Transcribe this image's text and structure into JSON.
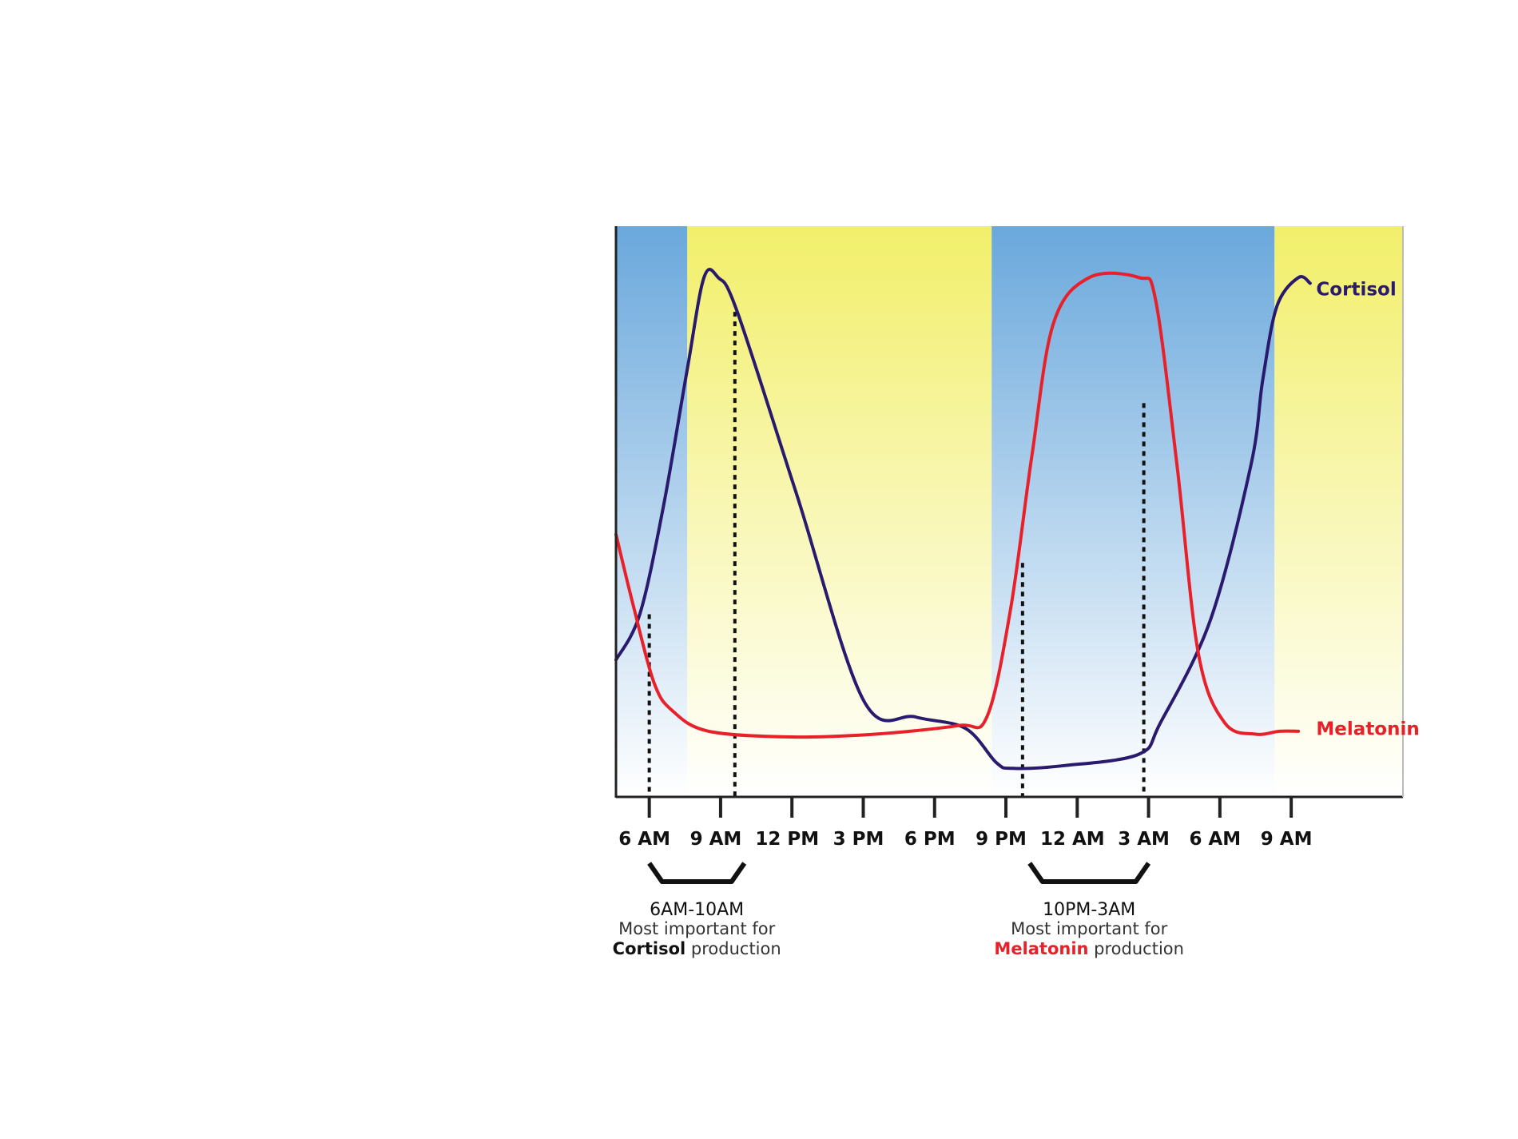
{
  "chart_data": {
    "type": "line",
    "title": "",
    "xlabel": "",
    "ylabel": "",
    "x_ticks": [
      "6 AM",
      "9 AM",
      "12 PM",
      "3 PM",
      "6 PM",
      "9 PM",
      "12 AM",
      "3 AM",
      "6 AM",
      "9 AM"
    ],
    "x_range_hours": [
      4.6,
      37.7
    ],
    "y_range": [
      0,
      100
    ],
    "grid": false,
    "colors": {
      "cortisol": "#2a1a6e",
      "melatonin": "#e8202a",
      "night": "#6aa8dc",
      "day": "#f2ef6a"
    },
    "background_bands": [
      {
        "type": "night",
        "from": 4.6,
        "to": 7.6
      },
      {
        "type": "day",
        "from": 7.6,
        "to": 20.4
      },
      {
        "type": "night",
        "from": 20.4,
        "to": 32.3
      },
      {
        "type": "day",
        "from": 32.3,
        "to": 37.7
      }
    ],
    "series": [
      {
        "name": "Cortisol",
        "color": "#2a1a6e",
        "points": [
          [
            4.6,
            24
          ],
          [
            5.6,
            32
          ],
          [
            6.6,
            51
          ],
          [
            7.6,
            75
          ],
          [
            8.3,
            91
          ],
          [
            8.9,
            91
          ],
          [
            9.7,
            85
          ],
          [
            12.2,
            53
          ],
          [
            15.0,
            17
          ],
          [
            17.2,
            14
          ],
          [
            19.3,
            12
          ],
          [
            20.6,
            6
          ],
          [
            21.3,
            5
          ],
          [
            23.5,
            5.5
          ],
          [
            26.6,
            7.5
          ],
          [
            27.5,
            13
          ],
          [
            29.6,
            31
          ],
          [
            31.3,
            58
          ],
          [
            31.8,
            73
          ],
          [
            32.4,
            86
          ],
          [
            33.3,
            91
          ],
          [
            33.8,
            90
          ]
        ]
      },
      {
        "name": "Melatonin",
        "color": "#e8202a",
        "points": [
          [
            4.6,
            46
          ],
          [
            5.3,
            34
          ],
          [
            6.2,
            20
          ],
          [
            7.0,
            15
          ],
          [
            8.5,
            11.5
          ],
          [
            12.0,
            10.5
          ],
          [
            15.5,
            11
          ],
          [
            19.0,
            12.5
          ],
          [
            20.2,
            14
          ],
          [
            21.2,
            33
          ],
          [
            22.1,
            60
          ],
          [
            23.0,
            83
          ],
          [
            24.5,
            91
          ],
          [
            26.6,
            91
          ],
          [
            27.3,
            87
          ],
          [
            28.2,
            58
          ],
          [
            29.1,
            25
          ],
          [
            30.2,
            13
          ],
          [
            31.5,
            11
          ],
          [
            32.5,
            11.5
          ],
          [
            33.3,
            11.5
          ]
        ]
      }
    ],
    "series_labels": [
      {
        "text": "Cortisol",
        "color": "#2a1a6e",
        "at": [
          33.85,
          89
        ]
      },
      {
        "text": "Melatonin",
        "color": "#e8202a",
        "at": [
          33.85,
          12
        ]
      }
    ],
    "markers": [
      {
        "x": 6.0,
        "y_top": 32
      },
      {
        "x": 9.6,
        "y_top": 85
      },
      {
        "x": 21.7,
        "y_top": 41
      },
      {
        "x": 26.8,
        "y_top": 69
      }
    ],
    "annotations": [
      {
        "bracket": [
          6.0,
          10.0
        ],
        "range": "6AM-10AM",
        "line2": "Most important for",
        "line3_strong": "Cortisol",
        "line3_rest": " production",
        "strong_color": "#111111"
      },
      {
        "bracket": [
          22.0,
          27.0
        ],
        "range": "10PM-3AM",
        "line2": "Most important for",
        "line3_strong": "Melatonin",
        "line3_rest": " production",
        "strong_color": "#e8202a"
      }
    ]
  }
}
